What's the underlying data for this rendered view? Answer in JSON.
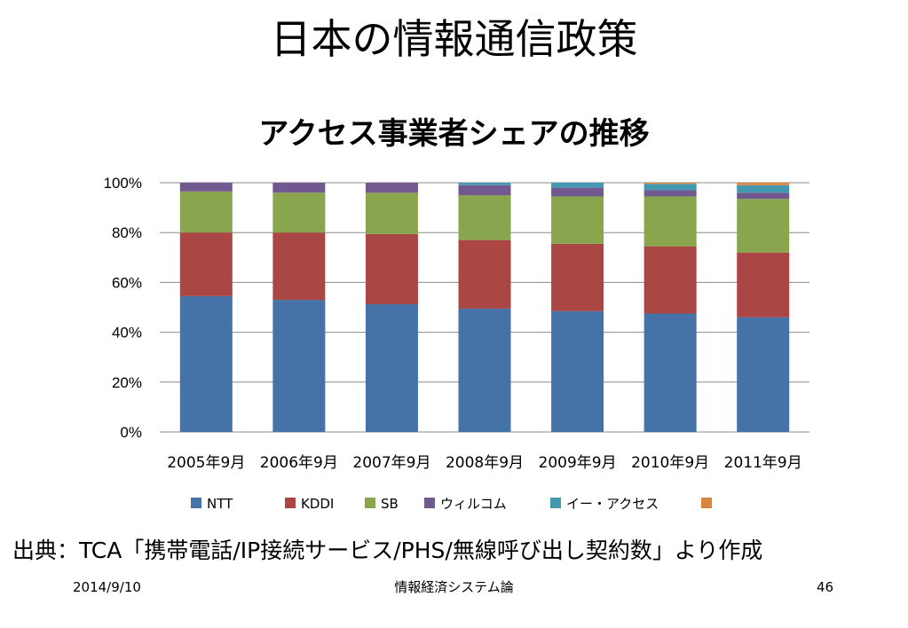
{
  "slide": {
    "title": "日本の情報通信政策",
    "source": "出典：TCA「携帯電話/IP接続サービス/PHS/無線呼び出し契約数」より作成",
    "footer_date": "2014/9/10",
    "footer_center": "情報経済システム論",
    "footer_page": "46"
  },
  "chart_data": {
    "type": "bar",
    "stacked": true,
    "percent": true,
    "title": "アクセス事業者シェアの推移",
    "xlabel": "",
    "ylabel": "",
    "ylim": [
      0,
      100
    ],
    "yticks": [
      "0%",
      "20%",
      "40%",
      "60%",
      "80%",
      "100%"
    ],
    "grid": true,
    "legend": "bottom",
    "categories": [
      "2005年9月",
      "2006年9月",
      "2007年9月",
      "2008年9月",
      "2009年9月",
      "2010年9月",
      "2011年9月"
    ],
    "series": [
      {
        "name": "NTT",
        "color": "#4572A7",
        "values": [
          54.5,
          53.0,
          51.0,
          49.5,
          48.5,
          47.5,
          46.0
        ]
      },
      {
        "name": "KDDI",
        "color": "#AA4643",
        "values": [
          25.5,
          27.0,
          28.0,
          27.5,
          27.0,
          27.0,
          26.0
        ]
      },
      {
        "name": "SB",
        "color": "#89A54E",
        "values": [
          16.5,
          16.0,
          16.5,
          18.0,
          19.0,
          20.0,
          21.5
        ]
      },
      {
        "name": "ウィルコム",
        "color": "#71588F",
        "values": [
          3.5,
          4.0,
          4.0,
          4.0,
          3.5,
          2.5,
          2.5
        ]
      },
      {
        "name": "イー・アクセス",
        "color": "#4198AF",
        "values": [
          0.0,
          0.0,
          0.0,
          1.0,
          2.0,
          2.5,
          3.0
        ]
      },
      {
        "color": "#DB843D",
        "values": [
          0.0,
          0.0,
          0.0,
          0.0,
          0.0,
          0.5,
          1.0
        ]
      }
    ]
  }
}
